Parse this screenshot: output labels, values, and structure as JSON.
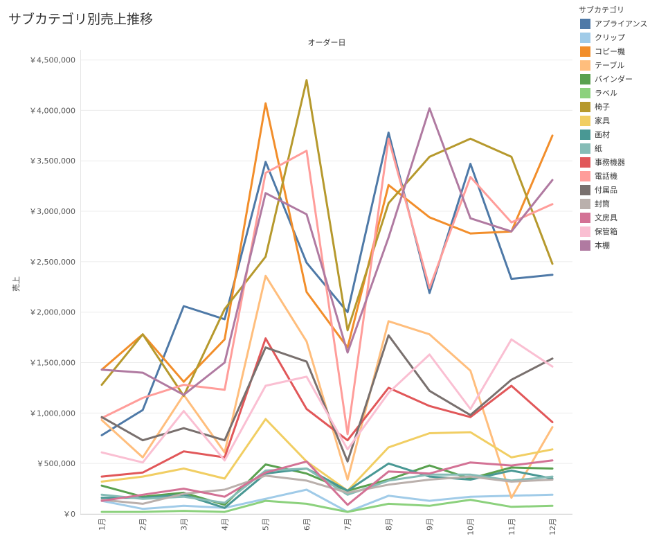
{
  "title": "サブカテゴリ別売上推移",
  "chart_data": {
    "type": "line",
    "title": "サブカテゴリ別売上推移",
    "header": "オーダー日",
    "xlabel": "",
    "ylabel": "売上",
    "categories": [
      "1月",
      "2月",
      "3月",
      "4月",
      "5月",
      "6月",
      "7月",
      "8月",
      "9月",
      "10月",
      "11月",
      "12月"
    ],
    "ylim": [
      0,
      4600000
    ],
    "yticks": [
      0,
      500000,
      1000000,
      1500000,
      2000000,
      2500000,
      3000000,
      3500000,
      4000000,
      4500000
    ],
    "ytick_labels": [
      "￥0",
      "￥500,000",
      "￥1,000,000",
      "￥1,500,000",
      "￥2,000,000",
      "￥2,500,000",
      "￥3,000,000",
      "￥3,500,000",
      "￥4,000,000",
      "￥4,500,000"
    ],
    "grid": true,
    "legend_title": "サブカテゴリ",
    "legend_position": "right",
    "series": [
      {
        "name": "アプライアンス",
        "color": "#4e79a7",
        "values": [
          780000,
          1030000,
          2060000,
          1930000,
          3490000,
          2490000,
          2000000,
          3780000,
          2190000,
          3470000,
          2330000,
          2370000
        ]
      },
      {
        "name": "クリップ",
        "color": "#a0cbe8",
        "values": [
          130000,
          50000,
          80000,
          60000,
          150000,
          240000,
          20000,
          180000,
          130000,
          170000,
          180000,
          190000
        ]
      },
      {
        "name": "コピー機",
        "color": "#f28e2b",
        "values": [
          1430000,
          1780000,
          1310000,
          1730000,
          4070000,
          2200000,
          1650000,
          3260000,
          2940000,
          2780000,
          2800000,
          3750000
        ]
      },
      {
        "name": "テーブル",
        "color": "#ffbe7d",
        "values": [
          930000,
          560000,
          1180000,
          610000,
          2360000,
          1710000,
          340000,
          1910000,
          1780000,
          1420000,
          160000,
          860000
        ]
      },
      {
        "name": "バインダー",
        "color": "#59a14f",
        "values": [
          280000,
          170000,
          210000,
          90000,
          490000,
          400000,
          230000,
          340000,
          480000,
          350000,
          460000,
          450000
        ]
      },
      {
        "name": "ラベル",
        "color": "#8cd17d",
        "values": [
          20000,
          20000,
          30000,
          20000,
          130000,
          100000,
          20000,
          100000,
          80000,
          140000,
          70000,
          80000
        ]
      },
      {
        "name": "椅子",
        "color": "#b6992d",
        "values": [
          1280000,
          1780000,
          1170000,
          2030000,
          2550000,
          4300000,
          1820000,
          3080000,
          3540000,
          3720000,
          3540000,
          2480000
        ]
      },
      {
        "name": "家具",
        "color": "#f1ce63",
        "values": [
          320000,
          370000,
          450000,
          350000,
          940000,
          520000,
          230000,
          660000,
          800000,
          810000,
          560000,
          640000
        ]
      },
      {
        "name": "画材",
        "color": "#499894",
        "values": [
          160000,
          160000,
          190000,
          60000,
          400000,
          450000,
          230000,
          500000,
          370000,
          340000,
          430000,
          350000
        ]
      },
      {
        "name": "紙",
        "color": "#86bcb6",
        "values": [
          190000,
          150000,
          170000,
          110000,
          430000,
          450000,
          190000,
          330000,
          390000,
          390000,
          330000,
          370000
        ]
      },
      {
        "name": "事務機器",
        "color": "#e15759",
        "values": [
          370000,
          410000,
          620000,
          560000,
          1740000,
          1040000,
          730000,
          1250000,
          1070000,
          960000,
          1270000,
          910000
        ]
      },
      {
        "name": "電話機",
        "color": "#ff9d9a",
        "values": [
          950000,
          1150000,
          1280000,
          1230000,
          3380000,
          3600000,
          790000,
          3720000,
          2240000,
          3340000,
          2890000,
          3070000
        ]
      },
      {
        "name": "付属品",
        "color": "#79706e",
        "values": [
          960000,
          730000,
          850000,
          730000,
          1650000,
          1510000,
          520000,
          1770000,
          1220000,
          980000,
          1330000,
          1540000
        ]
      },
      {
        "name": "封筒",
        "color": "#bab0ac",
        "values": [
          140000,
          100000,
          200000,
          240000,
          380000,
          330000,
          210000,
          290000,
          340000,
          370000,
          320000,
          340000
        ]
      },
      {
        "name": "文房具",
        "color": "#d37295",
        "values": [
          130000,
          190000,
          250000,
          170000,
          410000,
          520000,
          90000,
          420000,
          400000,
          510000,
          480000,
          530000
        ]
      },
      {
        "name": "保管箱",
        "color": "#fabfd2",
        "values": [
          610000,
          510000,
          1020000,
          530000,
          1270000,
          1360000,
          640000,
          1200000,
          1580000,
          1040000,
          1730000,
          1460000
        ]
      },
      {
        "name": "本棚",
        "color": "#b07aa1",
        "values": [
          1430000,
          1400000,
          1180000,
          1500000,
          3180000,
          2970000,
          1600000,
          2740000,
          4020000,
          2930000,
          2800000,
          3310000
        ]
      }
    ]
  }
}
